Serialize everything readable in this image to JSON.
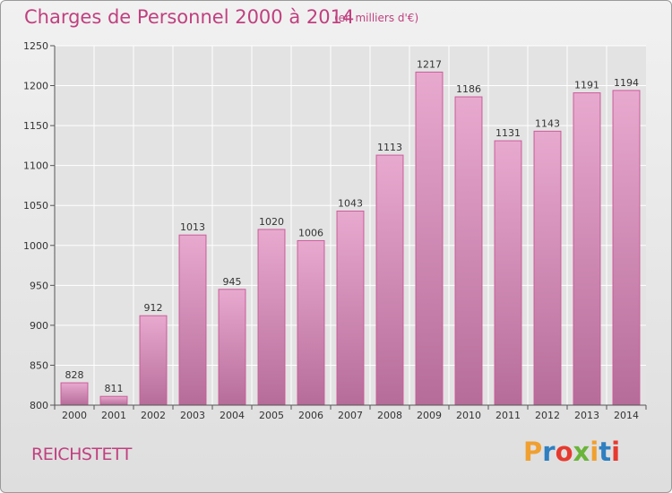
{
  "header": {
    "title": "Charges de Personnel 2000 à 2014",
    "subtitle": "(en milliers d'€)"
  },
  "footer": {
    "commune": "REICHSTETT",
    "logo": {
      "text": "Proxiti",
      "letters": [
        {
          "char": "P",
          "color": "#f0a030"
        },
        {
          "char": "r",
          "color": "#2f7fc1"
        },
        {
          "char": "o",
          "color": "#e63a2f"
        },
        {
          "char": "x",
          "color": "#6ab43a"
        },
        {
          "char": "i",
          "color": "#f0a030"
        },
        {
          "char": "t",
          "color": "#2f7fc1"
        },
        {
          "char": "i",
          "color": "#e63a2f"
        }
      ]
    }
  },
  "colors": {
    "accent": "#c0407f",
    "bar_top": "#e8a9cf",
    "bar_bottom": "#b66c99",
    "bar_stroke": "#c95d99",
    "grid": "#ffffff",
    "axis": "#555555"
  },
  "chart_data": {
    "type": "bar",
    "title": "Charges de Personnel 2000 à 2014",
    "subtitle": "(en milliers d'€)",
    "categories": [
      "2000",
      "2001",
      "2002",
      "2003",
      "2004",
      "2005",
      "2006",
      "2007",
      "2008",
      "2009",
      "2010",
      "2011",
      "2012",
      "2013",
      "2014"
    ],
    "values": [
      828,
      811,
      912,
      1013,
      945,
      1020,
      1006,
      1043,
      1113,
      1217,
      1186,
      1131,
      1143,
      1191,
      1194
    ],
    "ylim": [
      800,
      1250
    ],
    "yticks": [
      800,
      850,
      900,
      950,
      1000,
      1050,
      1100,
      1150,
      1200,
      1250
    ],
    "grid": true,
    "data_labels": true
  }
}
